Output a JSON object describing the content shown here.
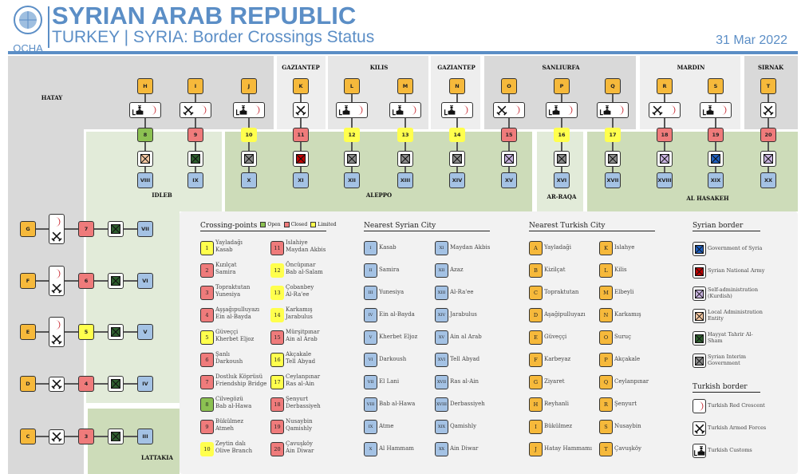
{
  "header": {
    "org": "OCHA",
    "title": "SYRIAN ARAB REPUBLIC",
    "subtitle": "TURKEY | SYRIA: Border Crossings Status",
    "date": "31 Mar 2022"
  },
  "colors": {
    "brand": "#5b8ec6",
    "letter": "#f6b93b",
    "roman": "#a4c2e4",
    "open": "#8cc152",
    "closed": "#ef7b7b",
    "limited": "#ffff4d",
    "gos": "#1f5fbf",
    "sna": "#c00000",
    "sa": "#c9b3e0",
    "lae": "#f4c7a1",
    "hts": "#2e5e2e",
    "sig": "#8c8c8c"
  },
  "turkish_provinces": [
    {
      "name": "HATAY"
    },
    {
      "name": "GAZIANTEP"
    },
    {
      "name": "KILIS"
    },
    {
      "name": "GAZIANTEP"
    },
    {
      "name": "SANLIURFA"
    },
    {
      "name": "MARDIN"
    },
    {
      "name": "SIRNAK"
    }
  ],
  "syrian_provinces": [
    {
      "name": "IDLEB"
    },
    {
      "name": "ALEPPO"
    },
    {
      "name": "AR-RAQA"
    },
    {
      "name": "AL HASAKEH"
    },
    {
      "name": "LATTAKIA"
    }
  ],
  "top_crossings": [
    {
      "letter": "H",
      "turkish": [
        "customs",
        "crescent"
      ],
      "number": "8",
      "status": "open",
      "syrian": "lae",
      "roman": "VIII"
    },
    {
      "letter": "I",
      "turkish": [
        "forces",
        "crescent"
      ],
      "number": "9",
      "status": "closed",
      "syrian": "hts",
      "roman": "IX"
    },
    {
      "letter": "J",
      "turkish": [
        "customs",
        "crescent"
      ],
      "number": "10",
      "status": "limited",
      "syrian": "sig",
      "roman": "X"
    },
    {
      "letter": "K",
      "turkish": [
        "forces"
      ],
      "number": "11",
      "status": "closed",
      "syrian": "sna",
      "roman": "XI"
    },
    {
      "letter": "L",
      "turkish": [
        "customs",
        "crescent"
      ],
      "number": "12",
      "status": "limited",
      "syrian": "sig",
      "roman": "XII"
    },
    {
      "letter": "M",
      "turkish": [
        "customs",
        "crescent"
      ],
      "number": "13",
      "status": "limited",
      "syrian": "sig",
      "roman": "XIII"
    },
    {
      "letter": "N",
      "turkish": [
        "customs",
        "crescent"
      ],
      "number": "14",
      "status": "limited",
      "syrian": "sig",
      "roman": "XIV"
    },
    {
      "letter": "O",
      "turkish": [
        "forces",
        "crescent"
      ],
      "number": "15",
      "status": "closed",
      "syrian": "sa",
      "roman": "XV"
    },
    {
      "letter": "P",
      "turkish": [
        "customs",
        "crescent"
      ],
      "number": "16",
      "status": "limited",
      "syrian": "sig",
      "roman": "XVI"
    },
    {
      "letter": "Q",
      "turkish": [
        "customs",
        "crescent"
      ],
      "number": "17",
      "status": "limited",
      "syrian": "sig",
      "roman": "XVII"
    },
    {
      "letter": "R",
      "turkish": [
        "forces",
        "crescent"
      ],
      "number": "18",
      "status": "closed",
      "syrian": "sa",
      "roman": "XVIII"
    },
    {
      "letter": "S",
      "turkish": [
        "customs",
        "crescent"
      ],
      "number": "19",
      "status": "closed",
      "syrian": "gos",
      "roman": "XIX"
    },
    {
      "letter": "T",
      "turkish": [
        "forces"
      ],
      "number": "20",
      "status": "closed",
      "syrian": "sa",
      "roman": "XX"
    }
  ],
  "left_crossings": [
    {
      "letter": "G",
      "turkish": [
        "crescent",
        "forces"
      ],
      "number": "7",
      "status": "closed",
      "syrian": "hts",
      "roman": "VII"
    },
    {
      "letter": "F",
      "turkish": [
        "crescent",
        "forces"
      ],
      "number": "6",
      "status": "closed",
      "syrian": "hts",
      "roman": "VI"
    },
    {
      "letter": "E",
      "turkish": [
        "crescent",
        "forces"
      ],
      "number": "5",
      "status": "limited",
      "syrian": "hts",
      "roman": "V"
    },
    {
      "letter": "D",
      "turkish": [
        "forces"
      ],
      "number": "4",
      "status": "closed",
      "syrian": "hts",
      "roman": "IV"
    },
    {
      "letter": "C",
      "turkish": [
        "forces"
      ],
      "number": "3",
      "status": "closed",
      "syrian": "hts",
      "roman": "III"
    }
  ],
  "legend": {
    "crossing_points": {
      "title": "Crossing-points",
      "statuses": [
        {
          "key": "open",
          "label": "Open"
        },
        {
          "key": "closed",
          "label": "Closed"
        },
        {
          "key": "limited",
          "label": "Limited"
        }
      ],
      "items": [
        {
          "number": "1",
          "status": "limited",
          "turkish": "Yayladağı",
          "syrian": "Kasab"
        },
        {
          "number": "2",
          "status": "closed",
          "turkish": "Kızılçat",
          "syrian": "Samira"
        },
        {
          "number": "3",
          "status": "closed",
          "turkish": "Topraktutan",
          "syrian": "Yunesiya"
        },
        {
          "number": "4",
          "status": "closed",
          "turkish": "Aşşağıpulluyazı",
          "syrian": "Ein al-Bayda"
        },
        {
          "number": "5",
          "status": "limited",
          "turkish": "Güveççi",
          "syrian": "Kherbet Eljoz"
        },
        {
          "number": "6",
          "status": "closed",
          "turkish": "Şanlı",
          "syrian": "Darkoush"
        },
        {
          "number": "7",
          "status": "closed",
          "turkish": "Dostluk Köprüsü",
          "syrian": "Friendship Bridge"
        },
        {
          "number": "8",
          "status": "open",
          "turkish": "Cilvegözü",
          "syrian": "Bab al-Hawa"
        },
        {
          "number": "9",
          "status": "closed",
          "turkish": "Bükülmez",
          "syrian": "Atmeh"
        },
        {
          "number": "10",
          "status": "limited",
          "turkish": "Zeytin dalı",
          "syrian": "Olive Branch"
        },
        {
          "number": "11",
          "status": "closed",
          "turkish": "Islahiye",
          "syrian": "Maydan Akbis"
        },
        {
          "number": "12",
          "status": "limited",
          "turkish": "Öncüpınar",
          "syrian": "Bab al-Salam"
        },
        {
          "number": "13",
          "status": "limited",
          "turkish": "Çobanbey",
          "syrian": "Al-Ra'ee"
        },
        {
          "number": "14",
          "status": "limited",
          "turkish": "Karkamış",
          "syrian": "Jarabulus"
        },
        {
          "number": "15",
          "status": "closed",
          "turkish": "Mürşitpınar",
          "syrian": "Ain al Arab"
        },
        {
          "number": "16",
          "status": "limited",
          "turkish": "Akçakale",
          "syrian": "Tell Abyad"
        },
        {
          "number": "17",
          "status": "limited",
          "turkish": "Ceylanpınar",
          "syrian": "Ras al-Ain"
        },
        {
          "number": "18",
          "status": "closed",
          "turkish": "Şenyurt",
          "syrian": "Derbassiyeh"
        },
        {
          "number": "19",
          "status": "closed",
          "turkish": "Nusaybin",
          "syrian": "Qamishly"
        },
        {
          "number": "20",
          "status": "closed",
          "turkish": "Çavuşköy",
          "syrian": "Ain Diwar"
        }
      ]
    },
    "syrian_city": {
      "title": "Nearest Syrian City",
      "items": [
        {
          "code": "I",
          "name": "Kasab"
        },
        {
          "code": "II",
          "name": "Samira"
        },
        {
          "code": "III",
          "name": "Yunesiya"
        },
        {
          "code": "IV",
          "name": "Ein al-Bayda"
        },
        {
          "code": "V",
          "name": "Kherbet Eljoz"
        },
        {
          "code": "VI",
          "name": "Darkoush"
        },
        {
          "code": "VII",
          "name": "El Lani"
        },
        {
          "code": "VIII",
          "name": "Bab al-Hawa"
        },
        {
          "code": "IX",
          "name": "Atme"
        },
        {
          "code": "X",
          "name": "Al Hammam"
        },
        {
          "code": "XI",
          "name": "Maydan Akbis"
        },
        {
          "code": "XII",
          "name": "Azaz"
        },
        {
          "code": "XIII",
          "name": "Al-Ra'ee"
        },
        {
          "code": "XIV",
          "name": "Jarabulus"
        },
        {
          "code": "XV",
          "name": "Ain al Arab"
        },
        {
          "code": "XVI",
          "name": "Tell Abyad"
        },
        {
          "code": "XVII",
          "name": "Ras al-Ain"
        },
        {
          "code": "XVIII",
          "name": "Derbassiyeh"
        },
        {
          "code": "XIX",
          "name": "Qamishly"
        },
        {
          "code": "XX",
          "name": "Ain Diwar"
        }
      ]
    },
    "turkish_city": {
      "title": "Nearest Turkish City",
      "items": [
        {
          "code": "A",
          "name": "Yayladaği"
        },
        {
          "code": "B",
          "name": "Kizilçat"
        },
        {
          "code": "C",
          "name": "Topraktutan"
        },
        {
          "code": "D",
          "name": "Aşağipulluyazı"
        },
        {
          "code": "E",
          "name": "Güveççi"
        },
        {
          "code": "F",
          "name": "Karbeyaz"
        },
        {
          "code": "G",
          "name": "Ziyaret"
        },
        {
          "code": "H",
          "name": "Reyhanli"
        },
        {
          "code": "I",
          "name": "Bükülmez"
        },
        {
          "code": "J",
          "name": "Hatay Hammamı"
        },
        {
          "code": "K",
          "name": "Islahye"
        },
        {
          "code": "L",
          "name": "Kilis"
        },
        {
          "code": "M",
          "name": "Elbeyli"
        },
        {
          "code": "N",
          "name": "Karkamış"
        },
        {
          "code": "O",
          "name": "Suruç"
        },
        {
          "code": "P",
          "name": "Akçakale"
        },
        {
          "code": "Q",
          "name": "Ceylanpınar"
        },
        {
          "code": "R",
          "name": "Şenyurt"
        },
        {
          "code": "S",
          "name": "Nusaybin"
        },
        {
          "code": "T",
          "name": "Çavuşköy"
        }
      ]
    },
    "syrian_border": {
      "title": "Syrian border",
      "items": [
        {
          "key": "gos",
          "label": "Government of Syria"
        },
        {
          "key": "sna",
          "label": "Syrian National Army"
        },
        {
          "key": "sa",
          "label": "Self-administration\n(Kurdish)"
        },
        {
          "key": "lae",
          "label": "Local Administration\nEntity"
        },
        {
          "key": "hts",
          "label": "Hayyat Tahrir Al-\nSham"
        },
        {
          "key": "sig",
          "label": "Syrian Interim\nGovernment"
        }
      ]
    },
    "turkish_border": {
      "title": "Turkish border",
      "items": [
        {
          "key": "crescent",
          "label": "Turkish Red Crescent"
        },
        {
          "key": "forces",
          "label": "Turkish Armed Forces"
        },
        {
          "key": "customs",
          "label": "Turkish Customs"
        }
      ]
    }
  }
}
